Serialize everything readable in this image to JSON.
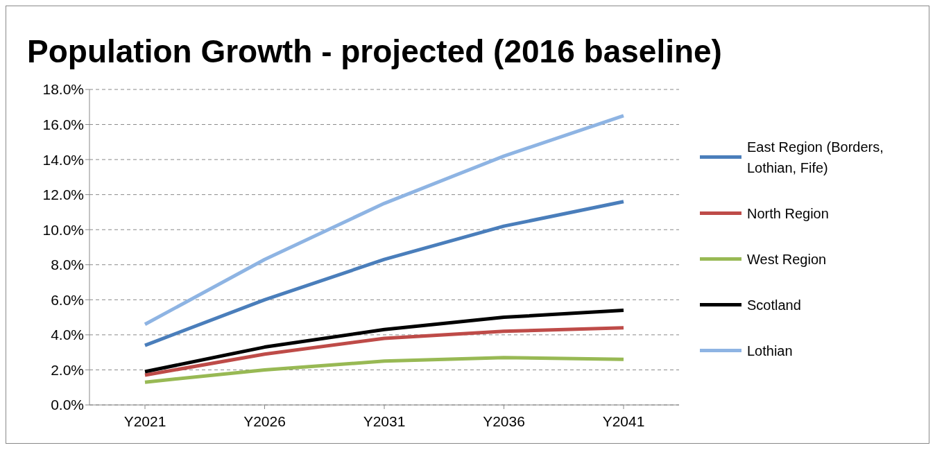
{
  "chart_data": {
    "type": "line",
    "title": "Population Growth - projected (2016 baseline)",
    "categories": [
      "Y2021",
      "Y2026",
      "Y2031",
      "Y2036",
      "Y2041"
    ],
    "series": [
      {
        "name": "East Region (Borders, Lothian, Fife)",
        "color": "#4a7ebb",
        "values": [
          3.4,
          6.0,
          8.3,
          10.2,
          11.6
        ]
      },
      {
        "name": "North Region",
        "color": "#be4b48",
        "values": [
          1.7,
          2.9,
          3.8,
          4.2,
          4.4
        ]
      },
      {
        "name": "West Region",
        "color": "#98b954",
        "values": [
          1.3,
          2.0,
          2.5,
          2.7,
          2.6
        ]
      },
      {
        "name": "Scotland",
        "color": "#000000",
        "values": [
          1.9,
          3.3,
          4.3,
          5.0,
          5.4
        ]
      },
      {
        "name": "Lothian",
        "color": "#8eb4e3",
        "values": [
          4.6,
          8.3,
          11.5,
          14.2,
          16.5
        ]
      }
    ],
    "ylim": [
      0,
      18
    ],
    "yticks": [
      {
        "value": 0,
        "label": "0.0%"
      },
      {
        "value": 2,
        "label": "2.0%"
      },
      {
        "value": 4,
        "label": "4.0%"
      },
      {
        "value": 6,
        "label": "6.0%"
      },
      {
        "value": 8,
        "label": "8.0%"
      },
      {
        "value": 10,
        "label": "10.0%"
      },
      {
        "value": 12,
        "label": "12.0%"
      },
      {
        "value": 14,
        "label": "14.0%"
      },
      {
        "value": 16,
        "label": "16.0%"
      },
      {
        "value": 18,
        "label": "18.0%"
      }
    ],
    "grid": "y",
    "legend": "right",
    "marker": "none",
    "line_style": "solid"
  }
}
